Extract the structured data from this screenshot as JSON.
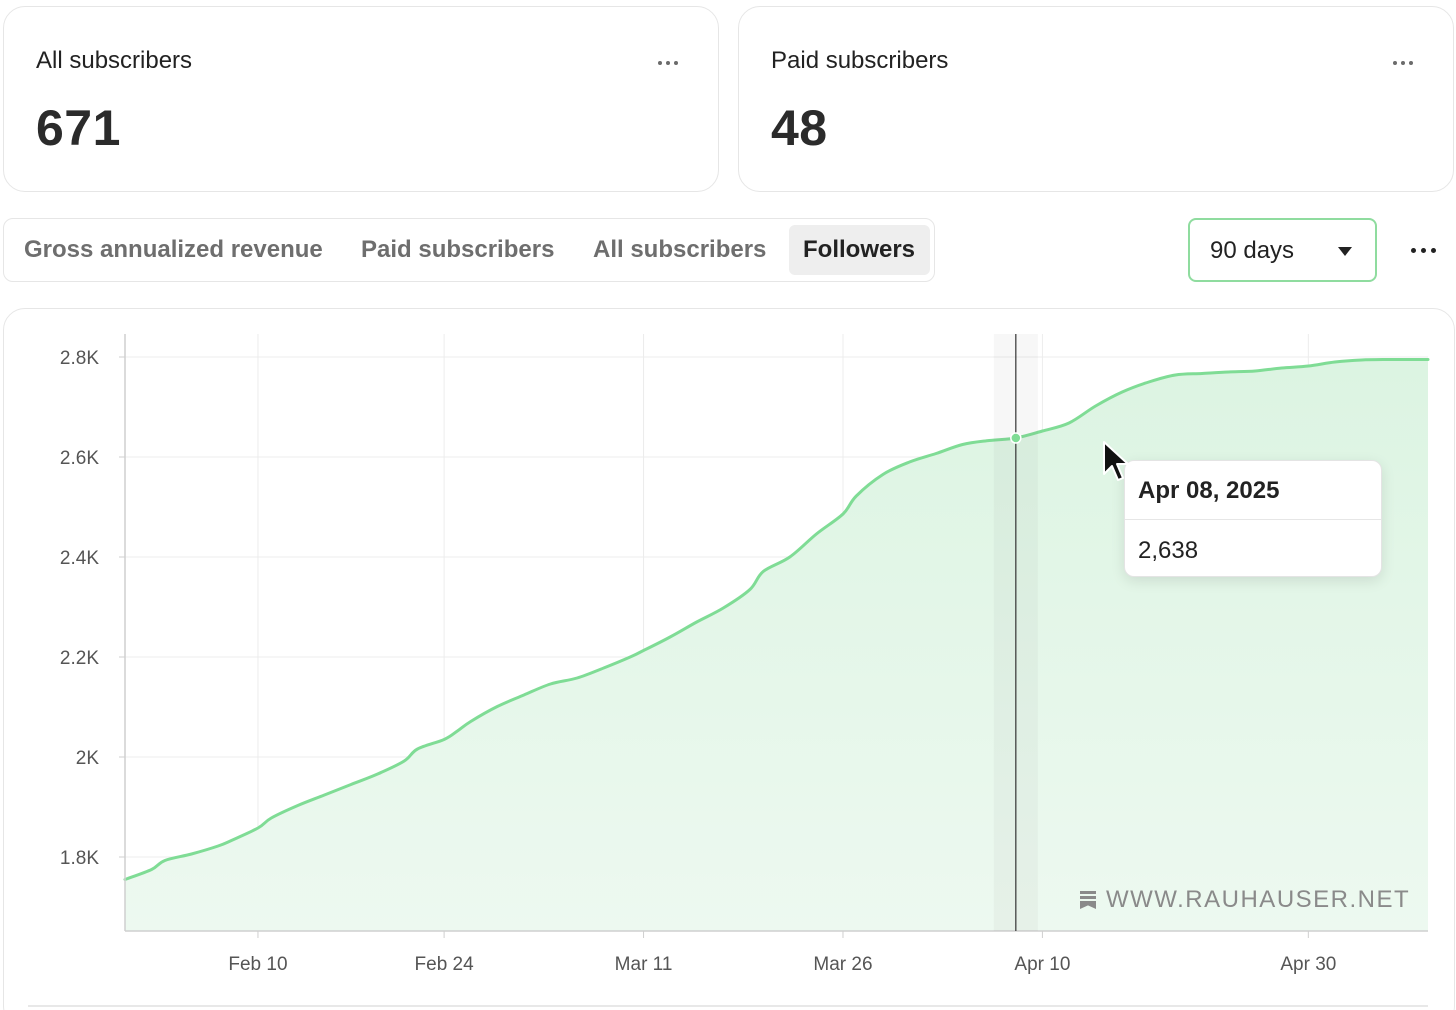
{
  "cards": [
    {
      "label": "All subscribers",
      "value": "671"
    },
    {
      "label": "Paid subscribers",
      "value": "48"
    }
  ],
  "tabs": [
    {
      "label": "Gross annualized revenue",
      "active": false
    },
    {
      "label": "Paid subscribers",
      "active": false
    },
    {
      "label": "All subscribers",
      "active": false
    },
    {
      "label": "Followers",
      "active": true
    }
  ],
  "range": {
    "selected": "90 days"
  },
  "tooltip": {
    "date": "Apr 08, 2025",
    "value": "2,638"
  },
  "watermark": {
    "text": "WWW.RAUHAUSER.NET"
  },
  "icons": {
    "card_menu": "more-horizontal-icon",
    "page_menu": "more-horizontal-icon",
    "dropdown": "caret-down-icon",
    "cursor": "mouse-pointer-icon",
    "watermark": "substack-logo-icon"
  },
  "colors": {
    "line": "#7fdc95",
    "area": "#e3f6e7",
    "select_border": "#8fdc9f"
  },
  "chart_data": {
    "type": "area",
    "series_name": "Followers",
    "y_ticks": [
      "2.8K",
      "2.6K",
      "2.4K",
      "2.2K",
      "2K",
      "1.8K"
    ],
    "y_tick_values": [
      2800,
      2600,
      2400,
      2200,
      2000,
      1800
    ],
    "ylim": [
      1652,
      2846
    ],
    "x_ticks": [
      {
        "label": "Feb 10",
        "date": "2025-02-10"
      },
      {
        "label": "Feb 24",
        "date": "2025-02-24"
      },
      {
        "label": "Mar 11",
        "date": "2025-03-11"
      },
      {
        "label": "Mar 26",
        "date": "2025-03-26"
      },
      {
        "label": "Apr 10",
        "date": "2025-04-10"
      },
      {
        "label": "Apr 30",
        "date": "2025-04-30"
      }
    ],
    "xlim": [
      "2025-01-31",
      "2025-05-09"
    ],
    "grid": true,
    "highlight": {
      "date": "2025-04-08",
      "value": 2638
    },
    "points": [
      [
        "2025-01-31",
        1755
      ],
      [
        "2025-02-02",
        1775
      ],
      [
        "2025-02-03",
        1793
      ],
      [
        "2025-02-05",
        1806
      ],
      [
        "2025-02-07",
        1822
      ],
      [
        "2025-02-08",
        1833
      ],
      [
        "2025-02-10",
        1858
      ],
      [
        "2025-02-11",
        1878
      ],
      [
        "2025-02-13",
        1903
      ],
      [
        "2025-02-15",
        1924
      ],
      [
        "2025-02-17",
        1945
      ],
      [
        "2025-02-19",
        1966
      ],
      [
        "2025-02-21",
        1992
      ],
      [
        "2025-02-22",
        2016
      ],
      [
        "2025-02-24",
        2035
      ],
      [
        "2025-02-25",
        2052
      ],
      [
        "2025-02-26",
        2071
      ],
      [
        "2025-02-28",
        2101
      ],
      [
        "2025-03-02",
        2124
      ],
      [
        "2025-03-04",
        2146
      ],
      [
        "2025-03-06",
        2158
      ],
      [
        "2025-03-08",
        2178
      ],
      [
        "2025-03-10",
        2200
      ],
      [
        "2025-03-11",
        2213
      ],
      [
        "2025-03-13",
        2240
      ],
      [
        "2025-03-15",
        2270
      ],
      [
        "2025-03-17",
        2298
      ],
      [
        "2025-03-19",
        2335
      ],
      [
        "2025-03-20",
        2371
      ],
      [
        "2025-03-22",
        2400
      ],
      [
        "2025-03-24",
        2446
      ],
      [
        "2025-03-26",
        2486
      ],
      [
        "2025-03-27",
        2522
      ],
      [
        "2025-03-29",
        2565
      ],
      [
        "2025-03-31",
        2590
      ],
      [
        "2025-04-02",
        2607
      ],
      [
        "2025-04-04",
        2625
      ],
      [
        "2025-04-06",
        2633
      ],
      [
        "2025-04-08",
        2638
      ],
      [
        "2025-04-10",
        2652
      ],
      [
        "2025-04-12",
        2668
      ],
      [
        "2025-04-14",
        2702
      ],
      [
        "2025-04-16",
        2730
      ],
      [
        "2025-04-18",
        2750
      ],
      [
        "2025-04-20",
        2764
      ],
      [
        "2025-04-22",
        2767
      ],
      [
        "2025-04-24",
        2770
      ],
      [
        "2025-04-26",
        2772
      ],
      [
        "2025-04-28",
        2778
      ],
      [
        "2025-04-30",
        2782
      ],
      [
        "2025-05-02",
        2790
      ],
      [
        "2025-05-04",
        2794
      ],
      [
        "2025-05-06",
        2795
      ],
      [
        "2025-05-08",
        2795
      ]
    ]
  }
}
